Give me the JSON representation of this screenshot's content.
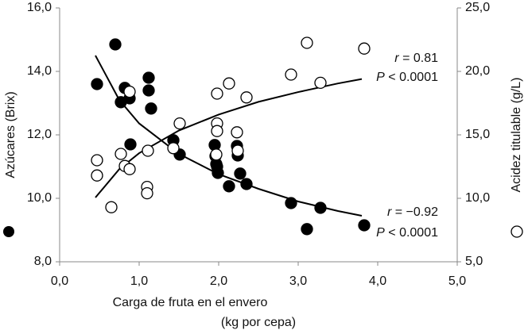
{
  "chart_data": {
    "type": "scatter",
    "x_label": [
      "Carga de fruta en el envero",
      "(kg por cepa)"
    ],
    "y_label": "Azúcares (Brix)",
    "y2_label": "Acidez titulable (g/L)",
    "xlim": [
      0,
      5
    ],
    "xticks": [
      {
        "value": 0,
        "label": "0,0"
      },
      {
        "value": 1,
        "label": "1,0"
      },
      {
        "value": 2,
        "label": "2,0"
      },
      {
        "value": 3,
        "label": "3,0"
      },
      {
        "value": 4,
        "label": "4,0"
      },
      {
        "value": 5,
        "label": "5,0"
      }
    ],
    "ylim": [
      8,
      16
    ],
    "yticks": [
      {
        "value": 8,
        "label": "8,0"
      },
      {
        "value": 10,
        "label": "10,0"
      },
      {
        "value": 12,
        "label": "12,0"
      },
      {
        "value": 14,
        "label": "14,0"
      },
      {
        "value": 16,
        "label": "16,0"
      }
    ],
    "y2lim": [
      5,
      25
    ],
    "y2ticks": [
      {
        "value": 5,
        "label": "5,0"
      },
      {
        "value": 10,
        "label": "10,0"
      },
      {
        "value": 15,
        "label": "15,0"
      },
      {
        "value": 20,
        "label": "20,0"
      },
      {
        "value": 25,
        "label": "25,0"
      }
    ],
    "series": [
      {
        "color": "#000000",
        "fill": "filled",
        "x": [
          0.47,
          0.7,
          0.77,
          0.82,
          0.88,
          0.89,
          1.12,
          1.12,
          1.15,
          1.43,
          1.51,
          1.95,
          1.96,
          1.97,
          1.99,
          1.98,
          2.23,
          2.24,
          2.27,
          2.13,
          2.35,
          2.91,
          3.11,
          3.28,
          3.83
        ],
        "values": [
          13.6,
          14.85,
          13.03,
          13.48,
          13.15,
          11.7,
          13.8,
          13.4,
          12.83,
          11.83,
          11.38,
          11.68,
          11.33,
          11.08,
          10.8,
          11.0,
          11.65,
          11.35,
          10.78,
          10.38,
          10.45,
          9.85,
          9.03,
          9.7,
          9.15
        ]
      },
      {
        "color": "#000000",
        "fill": "open",
        "axis": "y2",
        "x": [
          0.47,
          0.47,
          0.65,
          0.77,
          0.82,
          0.88,
          0.88,
          1.11,
          1.1,
          1.1,
          1.43,
          1.51,
          1.98,
          1.98,
          1.98,
          1.97,
          2.13,
          2.23,
          2.24,
          2.35,
          2.91,
          3.11,
          3.28,
          3.83
        ],
        "values": [
          13.0,
          11.8,
          9.3,
          13.5,
          12.55,
          18.4,
          12.3,
          13.75,
          10.9,
          10.4,
          13.95,
          15.9,
          18.25,
          15.9,
          15.3,
          13.45,
          19.05,
          15.2,
          13.75,
          17.95,
          19.75,
          22.25,
          19.1,
          21.8
        ]
      }
    ],
    "trendlines": [
      {
        "x": [
          0.45,
          0.75,
          1,
          1.5,
          2,
          2.5,
          3,
          3.5,
          3.8
        ],
        "values": [
          14.5,
          13.1,
          12.36,
          11.4,
          10.76,
          10.3,
          9.9,
          9.6,
          9.45
        ]
      },
      {
        "axis": "y2",
        "x": [
          0.45,
          0.75,
          1,
          1.5,
          2,
          2.5,
          3,
          3.5,
          3.8
        ],
        "values": [
          10.06,
          12.3,
          13.56,
          15.34,
          16.6,
          17.6,
          18.37,
          19.05,
          19.4
        ]
      }
    ],
    "annotations": [
      {
        "var": "r",
        "text": " = 0.81"
      },
      {
        "var": "P",
        "text": " < 0.0001"
      },
      {
        "var": "r",
        "text": " = −0.92"
      },
      {
        "var": "P",
        "text": " < 0.0001"
      }
    ]
  }
}
